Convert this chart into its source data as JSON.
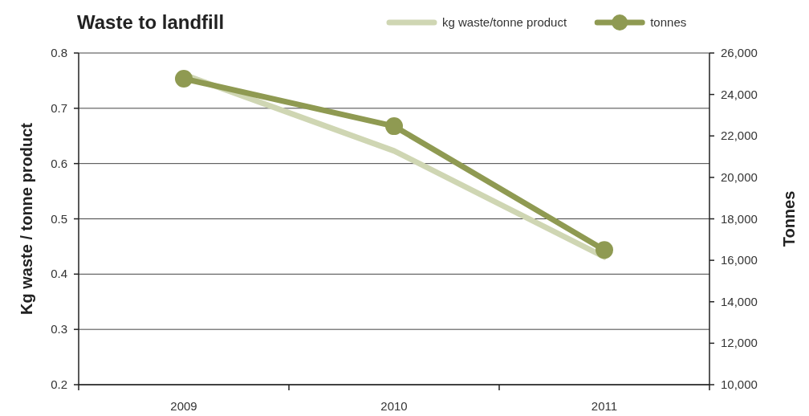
{
  "chart_data": {
    "type": "line",
    "title": "Waste to landfill",
    "ylabel": "Kg waste / tonne product",
    "y2label": "Tonnes",
    "categories": [
      "2009",
      "2010",
      "2011"
    ],
    "series": [
      {
        "name": "kg waste/tonne product",
        "color": "#cfd6b3",
        "values": [
          0.761,
          0.623,
          0.431
        ],
        "marker": "none"
      },
      {
        "name": "tonnes",
        "color": "#8f9a52",
        "values": [
          24760,
          22470,
          16500
        ],
        "axis": "y2",
        "marker": "circle"
      }
    ],
    "ylim": [
      0.2,
      0.8
    ],
    "yticks": [
      0.2,
      0.3,
      0.4,
      0.5,
      0.6,
      0.7,
      0.8
    ],
    "y2lim": [
      10000,
      26000
    ],
    "y2ticks": [
      {
        "value": 10000,
        "label": "10,000"
      },
      {
        "value": 12000,
        "label": "12,000"
      },
      {
        "value": 14000,
        "label": "14,000"
      },
      {
        "value": 16000,
        "label": "16,000"
      },
      {
        "value": 18000,
        "label": "18,000"
      },
      {
        "value": 20000,
        "label": "20,000"
      },
      {
        "value": 22000,
        "label": "22,000"
      },
      {
        "value": 24000,
        "label": "24,000"
      },
      {
        "value": 26000,
        "label": "26,000"
      }
    ],
    "grid": "y",
    "legend": "top right"
  }
}
